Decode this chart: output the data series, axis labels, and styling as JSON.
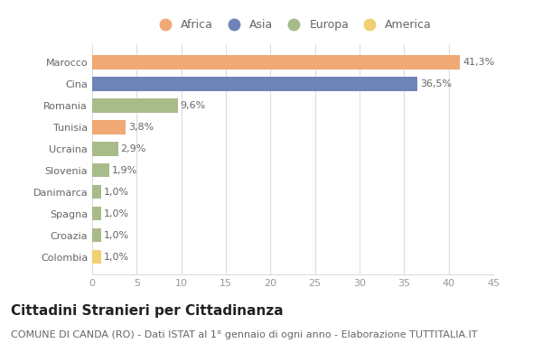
{
  "countries": [
    "Marocco",
    "Cina",
    "Romania",
    "Tunisia",
    "Ucraina",
    "Slovenia",
    "Danimarca",
    "Spagna",
    "Croazia",
    "Colombia"
  ],
  "values": [
    41.3,
    36.5,
    9.6,
    3.8,
    2.9,
    1.9,
    1.0,
    1.0,
    1.0,
    1.0
  ],
  "labels": [
    "41,3%",
    "36,5%",
    "9,6%",
    "3,8%",
    "2,9%",
    "1,9%",
    "1,0%",
    "1,0%",
    "1,0%",
    "1,0%"
  ],
  "colors": [
    "#F0A875",
    "#6E84B8",
    "#A8BC8A",
    "#F0A875",
    "#A8BC8A",
    "#A8BC8A",
    "#A8BC8A",
    "#A8BC8A",
    "#A8BC8A",
    "#F0D070"
  ],
  "legend_labels": [
    "Africa",
    "Asia",
    "Europa",
    "America"
  ],
  "legend_colors": [
    "#F0A875",
    "#6E84B8",
    "#A8BC8A",
    "#F0D070"
  ],
  "title": "Cittadini Stranieri per Cittadinanza",
  "subtitle": "COMUNE DI CANDA (RO) - Dati ISTAT al 1° gennaio di ogni anno - Elaborazione TUTTITALIA.IT",
  "xlim": [
    0,
    45
  ],
  "xticks": [
    0,
    5,
    10,
    15,
    20,
    25,
    30,
    35,
    40,
    45
  ],
  "background_color": "#ffffff",
  "grid_color": "#dddddd",
  "bar_height": 0.65,
  "title_fontsize": 11,
  "subtitle_fontsize": 8,
  "label_fontsize": 8,
  "tick_fontsize": 8
}
